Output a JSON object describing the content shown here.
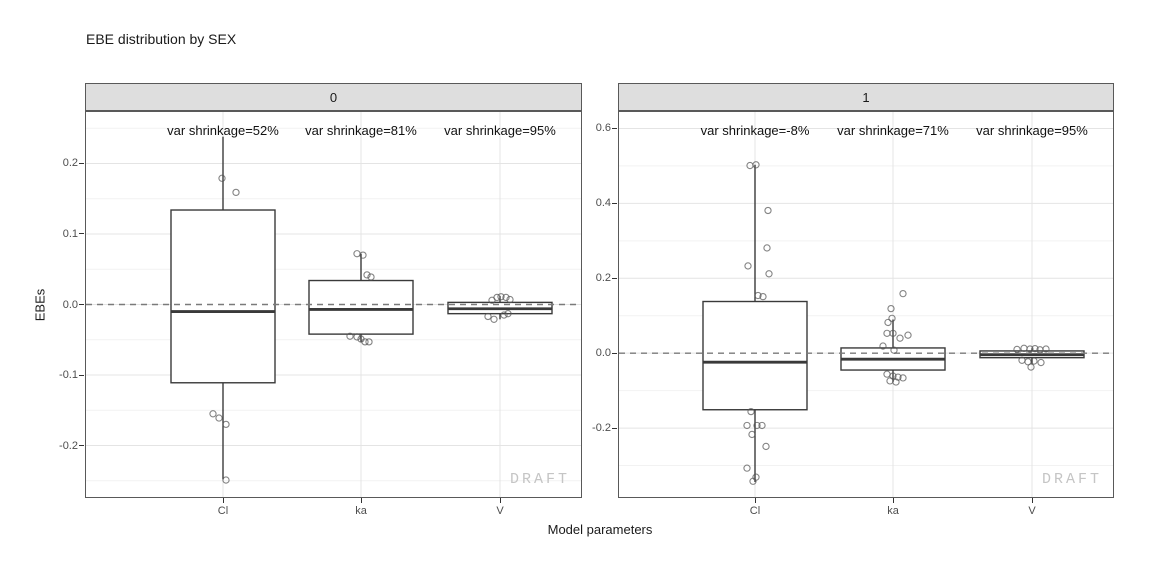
{
  "watermark": "DRAFT",
  "colors": {
    "background": "#ffffff",
    "strip_bg": "#dedede",
    "panel_border": "#595959",
    "grid_major": "#e4e4e4",
    "grid_minor": "#f2f2f2",
    "box_stroke": "#3a3a3a",
    "box_fill": "#ffffff",
    "ref_line": "#7a7a7a",
    "point_stroke": "#555555",
    "tick_mark": "#333333",
    "tick_label": "#4d4d4d",
    "text": "#1a1a1a",
    "draft": "#c5c5c5"
  },
  "chart_data": {
    "type": "boxplot",
    "title": "EBE distribution by SEX",
    "xlabel": "Model parameters",
    "ylabel": "EBEs",
    "facet_by": "SEX",
    "categories": [
      "Cl",
      "ka",
      "V"
    ],
    "grid": true,
    "legend": "none",
    "ref_line_y": 0,
    "panels": [
      {
        "facet_label": "0",
        "ylim": [
          -0.273,
          0.273
        ],
        "yticks": [
          -0.2,
          -0.1,
          0.0,
          0.1,
          0.2
        ],
        "ytick_labels": [
          "-0.2",
          "-0.1",
          "0.0",
          "0.1",
          "0.2"
        ],
        "yminor": [
          -0.25,
          -0.15,
          -0.05,
          0.05,
          0.15,
          0.25
        ],
        "annotations": [
          "var shrinkage=52%",
          "var shrinkage=81%",
          "var shrinkage=95%"
        ],
        "boxes": [
          {
            "category": "Cl",
            "whisker_low": -0.248,
            "q1": -0.111,
            "median": -0.01,
            "q3": 0.134,
            "whisker_high": 0.238,
            "points": [
              {
                "dx": -1,
                "y": 0.179
              },
              {
                "dx": 13,
                "y": 0.159
              },
              {
                "dx": -10,
                "y": -0.155
              },
              {
                "dx": -4,
                "y": -0.161
              },
              {
                "dx": 3,
                "y": -0.17
              },
              {
                "dx": 3,
                "y": -0.249
              }
            ]
          },
          {
            "category": "ka",
            "whisker_low": -0.053,
            "q1": -0.042,
            "median": -0.007,
            "q3": 0.034,
            "whisker_high": 0.072,
            "points": [
              {
                "dx": -4,
                "y": 0.072
              },
              {
                "dx": 2,
                "y": 0.07
              },
              {
                "dx": 6,
                "y": 0.042
              },
              {
                "dx": 10,
                "y": 0.039
              },
              {
                "dx": -11,
                "y": -0.045
              },
              {
                "dx": -4,
                "y": -0.046
              },
              {
                "dx": 0,
                "y": -0.049
              },
              {
                "dx": 4,
                "y": -0.053
              },
              {
                "dx": 8,
                "y": -0.053
              }
            ]
          },
          {
            "category": "V",
            "whisker_low": -0.021,
            "q1": -0.013,
            "median": -0.006,
            "q3": 0.003,
            "whisker_high": 0.012,
            "points": [
              {
                "dx": -8,
                "y": 0.006
              },
              {
                "dx": -3,
                "y": 0.01
              },
              {
                "dx": 1,
                "y": 0.011
              },
              {
                "dx": 6,
                "y": 0.01
              },
              {
                "dx": 10,
                "y": 0.007
              },
              {
                "dx": -12,
                "y": -0.017
              },
              {
                "dx": -6,
                "y": -0.021
              },
              {
                "dx": 4,
                "y": -0.015
              },
              {
                "dx": 8,
                "y": -0.013
              }
            ]
          }
        ]
      },
      {
        "facet_label": "1",
        "ylim": [
          -0.384,
          0.644
        ],
        "yticks": [
          -0.2,
          0.0,
          0.2,
          0.4,
          0.6
        ],
        "ytick_labels": [
          "-0.2",
          "0.0",
          "0.2",
          "0.4",
          "0.6"
        ],
        "yminor": [
          -0.3,
          -0.1,
          0.1,
          0.3,
          0.5
        ],
        "annotations": [
          "var shrinkage=-8%",
          "var shrinkage=71%",
          "var shrinkage=95%"
        ],
        "boxes": [
          {
            "category": "Cl",
            "whisker_low": -0.344,
            "q1": -0.151,
            "median": -0.024,
            "q3": 0.138,
            "whisker_high": 0.503,
            "points": [
              {
                "dx": -5,
                "y": 0.501
              },
              {
                "dx": 1,
                "y": 0.503
              },
              {
                "dx": 13,
                "y": 0.381
              },
              {
                "dx": 12,
                "y": 0.281
              },
              {
                "dx": -7,
                "y": 0.233
              },
              {
                "dx": 14,
                "y": 0.212
              },
              {
                "dx": 3,
                "y": 0.154
              },
              {
                "dx": 8,
                "y": 0.151
              },
              {
                "dx": -4,
                "y": -0.156
              },
              {
                "dx": -8,
                "y": -0.193
              },
              {
                "dx": 2,
                "y": -0.193
              },
              {
                "dx": 7,
                "y": -0.193
              },
              {
                "dx": -3,
                "y": -0.217
              },
              {
                "dx": 11,
                "y": -0.249
              },
              {
                "dx": -8,
                "y": -0.307
              },
              {
                "dx": 1,
                "y": -0.331
              },
              {
                "dx": -2,
                "y": -0.342
              }
            ]
          },
          {
            "category": "ka",
            "whisker_low": -0.077,
            "q1": -0.045,
            "median": -0.016,
            "q3": 0.014,
            "whisker_high": 0.09,
            "points": [
              {
                "dx": 10,
                "y": 0.159
              },
              {
                "dx": -2,
                "y": 0.119
              },
              {
                "dx": -1,
                "y": 0.093
              },
              {
                "dx": -5,
                "y": 0.082
              },
              {
                "dx": -6,
                "y": 0.053
              },
              {
                "dx": 0,
                "y": 0.053
              },
              {
                "dx": 15,
                "y": 0.048
              },
              {
                "dx": 7,
                "y": 0.04
              },
              {
                "dx": -10,
                "y": 0.019
              },
              {
                "dx": 1,
                "y": 0.008
              },
              {
                "dx": -6,
                "y": -0.056
              },
              {
                "dx": 0,
                "y": -0.061
              },
              {
                "dx": 5,
                "y": -0.064
              },
              {
                "dx": 10,
                "y": -0.066
              },
              {
                "dx": -3,
                "y": -0.074
              },
              {
                "dx": 3,
                "y": -0.077
              }
            ]
          },
          {
            "category": "V",
            "whisker_low": -0.03,
            "q1": -0.012,
            "median": -0.004,
            "q3": 0.006,
            "whisker_high": 0.013,
            "points": [
              {
                "dx": -15,
                "y": 0.01
              },
              {
                "dx": -8,
                "y": 0.013
              },
              {
                "dx": -2,
                "y": 0.011
              },
              {
                "dx": 3,
                "y": 0.012
              },
              {
                "dx": 8,
                "y": 0.009
              },
              {
                "dx": 14,
                "y": 0.011
              },
              {
                "dx": -10,
                "y": -0.019
              },
              {
                "dx": -4,
                "y": -0.023
              },
              {
                "dx": 2,
                "y": -0.021
              },
              {
                "dx": 9,
                "y": -0.025
              },
              {
                "dx": -1,
                "y": -0.037
              }
            ]
          }
        ]
      }
    ]
  }
}
